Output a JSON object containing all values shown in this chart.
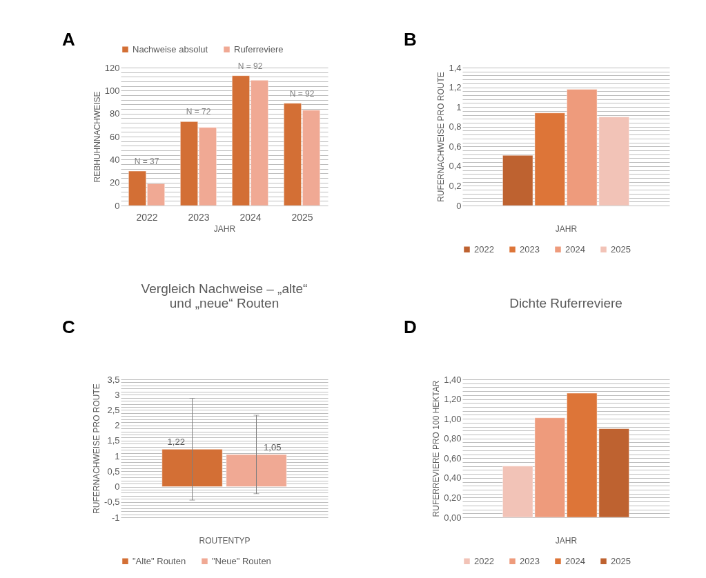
{
  "chart_data": [
    {
      "type": "bar",
      "annotations": [
        "A",
        "N = 37",
        "N = 72",
        "N = 92",
        "N = 92"
      ],
      "xlabel": "JAHR",
      "ylabel": "REBHUHNNACHWEISE",
      "categories": [
        "2022",
        "2023",
        "2024",
        "2025"
      ],
      "series": [
        {
          "name": "Nachweise absolut",
          "color": "#d36f35",
          "values": [
            30,
            73,
            113,
            89
          ]
        },
        {
          "name": "Ruferreviere",
          "color": "#f0a994",
          "values": [
            19,
            68,
            109,
            83
          ]
        }
      ],
      "ylim": [
        0,
        120
      ],
      "yticks": [
        0,
        {
          "value": 4,
          "label": null
        },
        {
          "value": 8,
          "label": null
        },
        {
          "value": 12,
          "label": null
        },
        {
          "value": 16,
          "label": null
        },
        20,
        {
          "value": 24,
          "label": null
        },
        {
          "value": 28,
          "label": null
        },
        {
          "value": 32,
          "label": null
        },
        {
          "value": 36,
          "label": null
        },
        40,
        {
          "value": 44,
          "label": null
        },
        {
          "value": 48,
          "label": null
        },
        {
          "value": 52,
          "label": null
        },
        {
          "value": 56,
          "label": null
        },
        60,
        {
          "value": 64,
          "label": null
        },
        {
          "value": 68,
          "label": null
        },
        {
          "value": 72,
          "label": null
        },
        {
          "value": 76,
          "label": null
        },
        80,
        {
          "value": 84,
          "label": null
        },
        {
          "value": 88,
          "label": null
        },
        {
          "value": 92,
          "label": null
        },
        {
          "value": 96,
          "label": null
        },
        100,
        {
          "value": 104,
          "label": null
        },
        {
          "value": 108,
          "label": null
        },
        {
          "value": 112,
          "label": null
        },
        {
          "value": 116,
          "label": null
        },
        120
      ],
      "grid": "y",
      "legend": "top"
    },
    {
      "type": "bar",
      "annotations": [
        "B"
      ],
      "xlabel": "JAHR",
      "ylabel": "RUFERNACHWEISE PRO ROUTE",
      "categories": [
        null
      ],
      "series": [
        {
          "name": "2022",
          "color": "#be6230",
          "values": [
            0.51
          ]
        },
        {
          "name": "2023",
          "color": "#dd7538",
          "values": [
            0.94
          ]
        },
        {
          "name": "2024",
          "color": "#ee9b7c",
          "values": [
            1.18
          ]
        },
        {
          "name": "2025",
          "color": "#f2c3b7",
          "values": [
            0.9
          ]
        }
      ],
      "ylim": [
        0,
        1.4
      ],
      "yticks": [
        0,
        {
          "value": 0.04,
          "label": null
        },
        {
          "value": 0.08,
          "label": null
        },
        {
          "value": 0.12,
          "label": null
        },
        {
          "value": 0.16,
          "label": null
        },
        {
          "value": 0.2,
          "label": "0,2"
        },
        {
          "value": 0.24,
          "label": null
        },
        {
          "value": 0.28,
          "label": null
        },
        {
          "value": 0.32,
          "label": null
        },
        {
          "value": 0.36,
          "label": null
        },
        {
          "value": 0.4,
          "label": "0,4"
        },
        {
          "value": 0.44,
          "label": null
        },
        {
          "value": 0.48,
          "label": null
        },
        {
          "value": 0.52,
          "label": null
        },
        {
          "value": 0.56,
          "label": null
        },
        {
          "value": 0.6,
          "label": "0,6"
        },
        {
          "value": 0.64,
          "label": null
        },
        {
          "value": 0.68,
          "label": null
        },
        {
          "value": 0.72,
          "label": null
        },
        {
          "value": 0.76,
          "label": null
        },
        {
          "value": 0.8,
          "label": "0,8"
        },
        {
          "value": 0.84,
          "label": null
        },
        {
          "value": 0.88,
          "label": null
        },
        {
          "value": 0.92,
          "label": null
        },
        {
          "value": 0.96,
          "label": null
        },
        1,
        {
          "value": 1.04,
          "label": null
        },
        {
          "value": 1.08,
          "label": null
        },
        {
          "value": 1.12,
          "label": null
        },
        {
          "value": 1.16,
          "label": null
        },
        {
          "value": 1.2,
          "label": "1,2"
        },
        {
          "value": 1.24,
          "label": null
        },
        {
          "value": 1.28,
          "label": null
        },
        {
          "value": 1.32,
          "label": null
        },
        {
          "value": 1.36,
          "label": null
        },
        {
          "value": 1.4,
          "label": "1,4"
        }
      ],
      "grid": "y",
      "legend": "bottom"
    },
    {
      "type": "bar",
      "title": "Vergleich Nachweise – „alte“ und „neue“ Routen",
      "annotations": [
        "C"
      ],
      "xlabel": "ROUTENTYP",
      "ylabel": "RUFERNACHWEISE PRO ROUTE",
      "categories": [
        null
      ],
      "series": [
        {
          "name": "\"Alte\" Routen",
          "color": "#d36f35",
          "values": [
            1.22
          ],
          "errors": [
            1.66
          ],
          "value_labels": [
            "1,22"
          ]
        },
        {
          "name": "\"Neue\" Routen",
          "color": "#f0a994",
          "values": [
            1.05
          ],
          "errors": [
            1.28
          ],
          "value_labels": [
            "1,05"
          ]
        }
      ],
      "ylim": [
        -1,
        3.5
      ],
      "yticks": [
        -1,
        {
          "value": -0.9,
          "label": null
        },
        {
          "value": -0.8,
          "label": null
        },
        {
          "value": -0.7,
          "label": null
        },
        {
          "value": -0.6,
          "label": null
        },
        {
          "value": -0.5,
          "label": "-0,5"
        },
        {
          "value": -0.4,
          "label": null
        },
        {
          "value": -0.3,
          "label": null
        },
        {
          "value": -0.2,
          "label": null
        },
        {
          "value": -0.1,
          "label": null
        },
        0,
        {
          "value": 0.1,
          "label": null
        },
        {
          "value": 0.2,
          "label": null
        },
        {
          "value": 0.3,
          "label": null
        },
        {
          "value": 0.4,
          "label": null
        },
        {
          "value": 0.5,
          "label": "0,5"
        },
        {
          "value": 0.6,
          "label": null
        },
        {
          "value": 0.7,
          "label": null
        },
        {
          "value": 0.8,
          "label": null
        },
        {
          "value": 0.9,
          "label": null
        },
        1,
        {
          "value": 1.1,
          "label": null
        },
        {
          "value": 1.2,
          "label": null
        },
        {
          "value": 1.3,
          "label": null
        },
        {
          "value": 1.4,
          "label": null
        },
        {
          "value": 1.5,
          "label": "1,5"
        },
        {
          "value": 1.6,
          "label": null
        },
        {
          "value": 1.7,
          "label": null
        },
        {
          "value": 1.8,
          "label": null
        },
        {
          "value": 1.9,
          "label": null
        },
        2,
        {
          "value": 2.1,
          "label": null
        },
        {
          "value": 2.2,
          "label": null
        },
        {
          "value": 2.3,
          "label": null
        },
        {
          "value": 2.4,
          "label": null
        },
        {
          "value": 2.5,
          "label": "2,5"
        },
        {
          "value": 2.6,
          "label": null
        },
        {
          "value": 2.7,
          "label": null
        },
        {
          "value": 2.8,
          "label": null
        },
        {
          "value": 2.9,
          "label": null
        },
        3,
        {
          "value": 3.1,
          "label": null
        },
        {
          "value": 3.2,
          "label": null
        },
        {
          "value": 3.3,
          "label": null
        },
        {
          "value": 3.4,
          "label": null
        },
        {
          "value": 3.5,
          "label": "3,5"
        }
      ],
      "grid": "y",
      "legend": "bottom"
    },
    {
      "type": "bar",
      "title": "Dichte Ruferreviere",
      "annotations": [
        "D"
      ],
      "xlabel": "JAHR",
      "ylabel": "RUFERREVIERE PRO 100 HEKTAR",
      "categories": [
        null
      ],
      "series": [
        {
          "name": "2022",
          "color": "#f2c3b7",
          "values": [
            0.52
          ]
        },
        {
          "name": "2023",
          "color": "#ee9b7c",
          "values": [
            1.01
          ]
        },
        {
          "name": "2024",
          "color": "#dd7538",
          "values": [
            1.26
          ]
        },
        {
          "name": "2025",
          "color": "#be6230",
          "values": [
            0.9
          ]
        }
      ],
      "ylim": [
        0,
        1.4
      ],
      "yticks": [
        {
          "value": 0,
          "label": "0,00"
        },
        {
          "value": 0.04,
          "label": null
        },
        {
          "value": 0.08,
          "label": null
        },
        {
          "value": 0.12,
          "label": null
        },
        {
          "value": 0.16,
          "label": null
        },
        {
          "value": 0.2,
          "label": "0,20"
        },
        {
          "value": 0.24,
          "label": null
        },
        {
          "value": 0.28,
          "label": null
        },
        {
          "value": 0.32,
          "label": null
        },
        {
          "value": 0.36,
          "label": null
        },
        {
          "value": 0.4,
          "label": "0,40"
        },
        {
          "value": 0.44,
          "label": null
        },
        {
          "value": 0.48,
          "label": null
        },
        {
          "value": 0.52,
          "label": null
        },
        {
          "value": 0.56,
          "label": null
        },
        {
          "value": 0.6,
          "label": "0,60"
        },
        {
          "value": 0.64,
          "label": null
        },
        {
          "value": 0.68,
          "label": null
        },
        {
          "value": 0.72,
          "label": null
        },
        {
          "value": 0.76,
          "label": null
        },
        {
          "value": 0.8,
          "label": "0,80"
        },
        {
          "value": 0.84,
          "label": null
        },
        {
          "value": 0.88,
          "label": null
        },
        {
          "value": 0.92,
          "label": null
        },
        {
          "value": 0.96,
          "label": null
        },
        {
          "value": 1,
          "label": "1,00"
        },
        {
          "value": 1.04,
          "label": null
        },
        {
          "value": 1.08,
          "label": null
        },
        {
          "value": 1.12,
          "label": null
        },
        {
          "value": 1.16,
          "label": null
        },
        {
          "value": 1.2,
          "label": "1,20"
        },
        {
          "value": 1.24,
          "label": null
        },
        {
          "value": 1.28,
          "label": null
        },
        {
          "value": 1.32,
          "label": null
        },
        {
          "value": 1.36,
          "label": null
        },
        {
          "value": 1.4,
          "label": "1,40"
        }
      ],
      "grid": "y",
      "legend": "bottom"
    }
  ]
}
